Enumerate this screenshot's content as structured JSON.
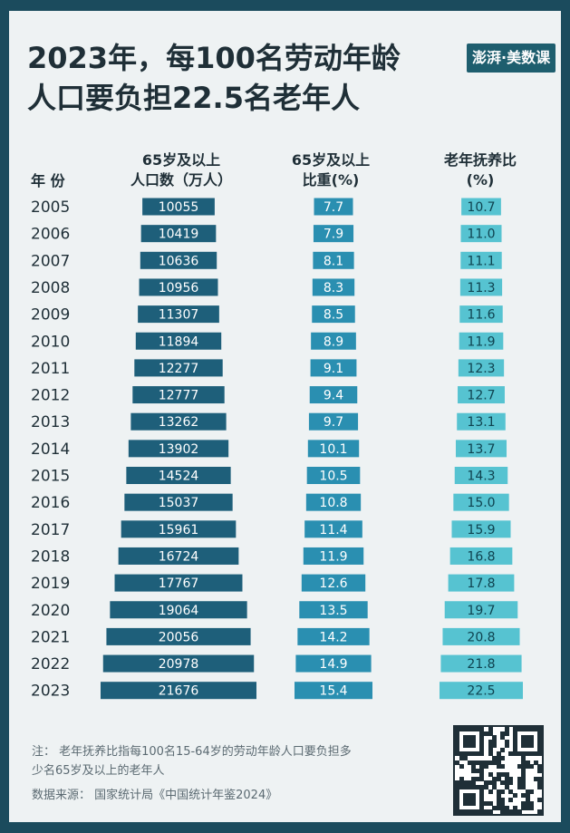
{
  "title_line1": "2023年，每100名劳动年龄",
  "title_line2": "人口要负担22.5名老年人",
  "logo_text": "澎湃·美数课",
  "headers": {
    "year": "年 份",
    "pop_line1": "65岁及以上",
    "pop_line2": "人口数（万人）",
    "share_line1": "65岁及以上",
    "share_line2": "比重(%)",
    "ratio_line1": "老年抚养比",
    "ratio_line2": "(%)"
  },
  "colors": {
    "background": "#1b4b5d",
    "card": "#eef2f3",
    "bar_population": "#1e5f7a",
    "bar_share": "#2a8fb1",
    "bar_ratio": "#56c3d1",
    "text_dark": "#1f2f37"
  },
  "chart_data": {
    "type": "bar",
    "categories": [
      "2005",
      "2006",
      "2007",
      "2008",
      "2009",
      "2010",
      "2011",
      "2012",
      "2013",
      "2014",
      "2015",
      "2016",
      "2017",
      "2018",
      "2019",
      "2020",
      "2021",
      "2022",
      "2023"
    ],
    "series": [
      {
        "name": "65岁及以上人口数（万人）",
        "values": [
          "10055",
          "10419",
          "10636",
          "10956",
          "11307",
          "11894",
          "12277",
          "12777",
          "13262",
          "13902",
          "14524",
          "15037",
          "15961",
          "16724",
          "17767",
          "19064",
          "20056",
          "20978",
          "21676"
        ]
      },
      {
        "name": "65岁及以上比重(%)",
        "values": [
          "7.7",
          "7.9",
          "8.1",
          "8.3",
          "8.5",
          "8.9",
          "9.1",
          "9.4",
          "9.7",
          "10.1",
          "10.5",
          "10.8",
          "11.4",
          "11.9",
          "12.6",
          "13.5",
          "14.2",
          "14.9",
          "15.4"
        ]
      },
      {
        "name": "老年抚养比(%)",
        "values": [
          "10.7",
          "11.0",
          "11.1",
          "11.3",
          "11.6",
          "11.9",
          "12.3",
          "12.7",
          "13.1",
          "13.7",
          "14.3",
          "15.0",
          "15.9",
          "16.8",
          "17.8",
          "19.7",
          "20.8",
          "21.8",
          "22.5"
        ]
      }
    ]
  },
  "note_line1": "注：  老年抚养比指每100名15-64岁的劳动年龄人口要负担多",
  "note_line2": "少名65岁及以上的老年人",
  "source": "数据来源：  国家统计局《中国统计年鉴2024》"
}
